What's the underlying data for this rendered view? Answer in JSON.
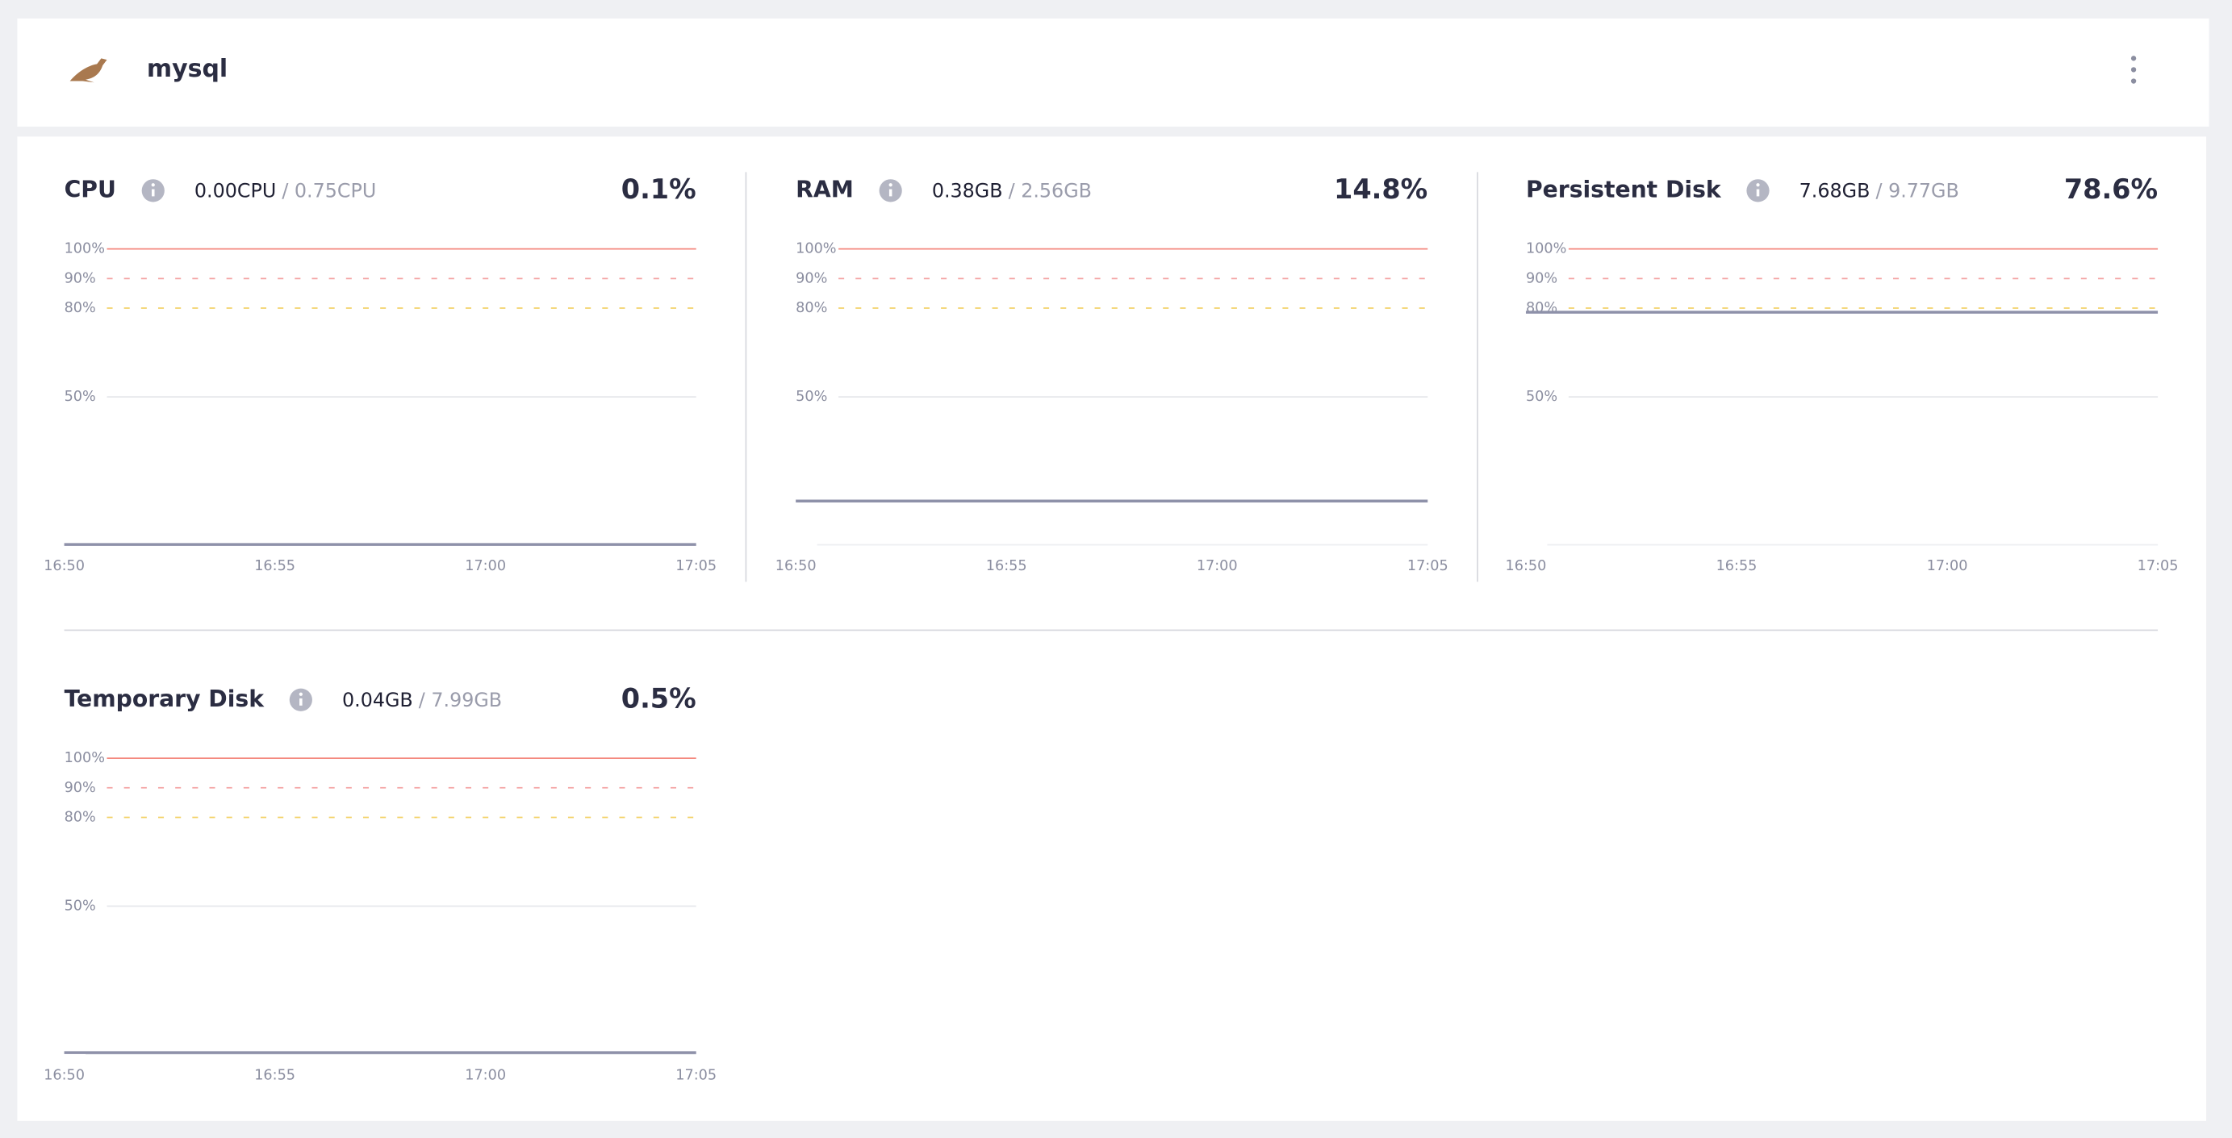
{
  "header": {
    "title": "mysql"
  },
  "panels": [
    {
      "title": "CPU",
      "used": "0.00CPU",
      "total": "/ 0.75CPU",
      "percent": "0.1%",
      "chart": {
        "type": "line",
        "x": [
          "16:50",
          "16:55",
          "17:00",
          "17:05"
        ],
        "series": [
          {
            "color": "#8e91a9",
            "values": [
              0.1,
              0.1,
              0.1,
              0.1
            ]
          }
        ],
        "ylim": [
          0,
          100
        ],
        "yticks": [
          {
            "value": 50,
            "label": "50%"
          },
          {
            "value": 80,
            "label": "80%"
          },
          {
            "value": 90,
            "label": "90%"
          },
          {
            "value": 100,
            "label": "100%"
          }
        ],
        "tick_colors": [
          "#e6e7eb",
          "#f3d36b",
          "#f4a3a3",
          "#f4897f"
        ],
        "tick_dashed": [
          false,
          true,
          true,
          false
        ]
      }
    },
    {
      "title": "RAM",
      "used": "0.38GB",
      "total": "/ 2.56GB",
      "percent": "14.8%",
      "chart": {
        "type": "line",
        "x": [
          "16:50",
          "16:55",
          "17:00",
          "17:05"
        ],
        "series": [
          {
            "color": "#8e91a9",
            "values": [
              14.8,
              14.8,
              14.8,
              14.8
            ]
          }
        ],
        "ylim": [
          0,
          100
        ],
        "yticks": [
          {
            "value": 50,
            "label": "50%"
          },
          {
            "value": 80,
            "label": "80%"
          },
          {
            "value": 90,
            "label": "90%"
          },
          {
            "value": 100,
            "label": "100%"
          }
        ],
        "tick_colors": [
          "#e6e7eb",
          "#f3d36b",
          "#f4a3a3",
          "#f4897f"
        ],
        "tick_dashed": [
          false,
          true,
          true,
          false
        ]
      }
    },
    {
      "title": "Persistent Disk",
      "used": "7.68GB",
      "total": "/ 9.77GB",
      "percent": "78.6%",
      "chart": {
        "type": "line",
        "x": [
          "16:50",
          "16:55",
          "17:00",
          "17:05"
        ],
        "series": [
          {
            "color": "#8e91a9",
            "values": [
              78.6,
              78.6,
              78.6,
              78.6
            ]
          }
        ],
        "ylim": [
          0,
          100
        ],
        "yticks": [
          {
            "value": 50,
            "label": "50%"
          },
          {
            "value": 80,
            "label": "80%"
          },
          {
            "value": 90,
            "label": "90%"
          },
          {
            "value": 100,
            "label": "100%"
          }
        ],
        "tick_colors": [
          "#e6e7eb",
          "#f3d36b",
          "#f4a3a3",
          "#f4897f"
        ],
        "tick_dashed": [
          false,
          true,
          true,
          false
        ]
      }
    },
    {
      "title": "Temporary Disk",
      "used": "0.04GB",
      "total": "/ 7.99GB",
      "percent": "0.5%",
      "chart": {
        "type": "line",
        "x": [
          "16:50",
          "16:55",
          "17:00",
          "17:05"
        ],
        "series": [
          {
            "color": "#8e91a9",
            "values": [
              0.5,
              0.5,
              0.5,
              0.5
            ]
          }
        ],
        "ylim": [
          0,
          100
        ],
        "yticks": [
          {
            "value": 50,
            "label": "50%"
          },
          {
            "value": 80,
            "label": "80%"
          },
          {
            "value": 90,
            "label": "90%"
          },
          {
            "value": 100,
            "label": "100%"
          }
        ],
        "tick_colors": [
          "#e6e7eb",
          "#f3d36b",
          "#f4a3a3",
          "#f4897f"
        ],
        "tick_dashed": [
          false,
          true,
          true,
          false
        ]
      }
    }
  ]
}
